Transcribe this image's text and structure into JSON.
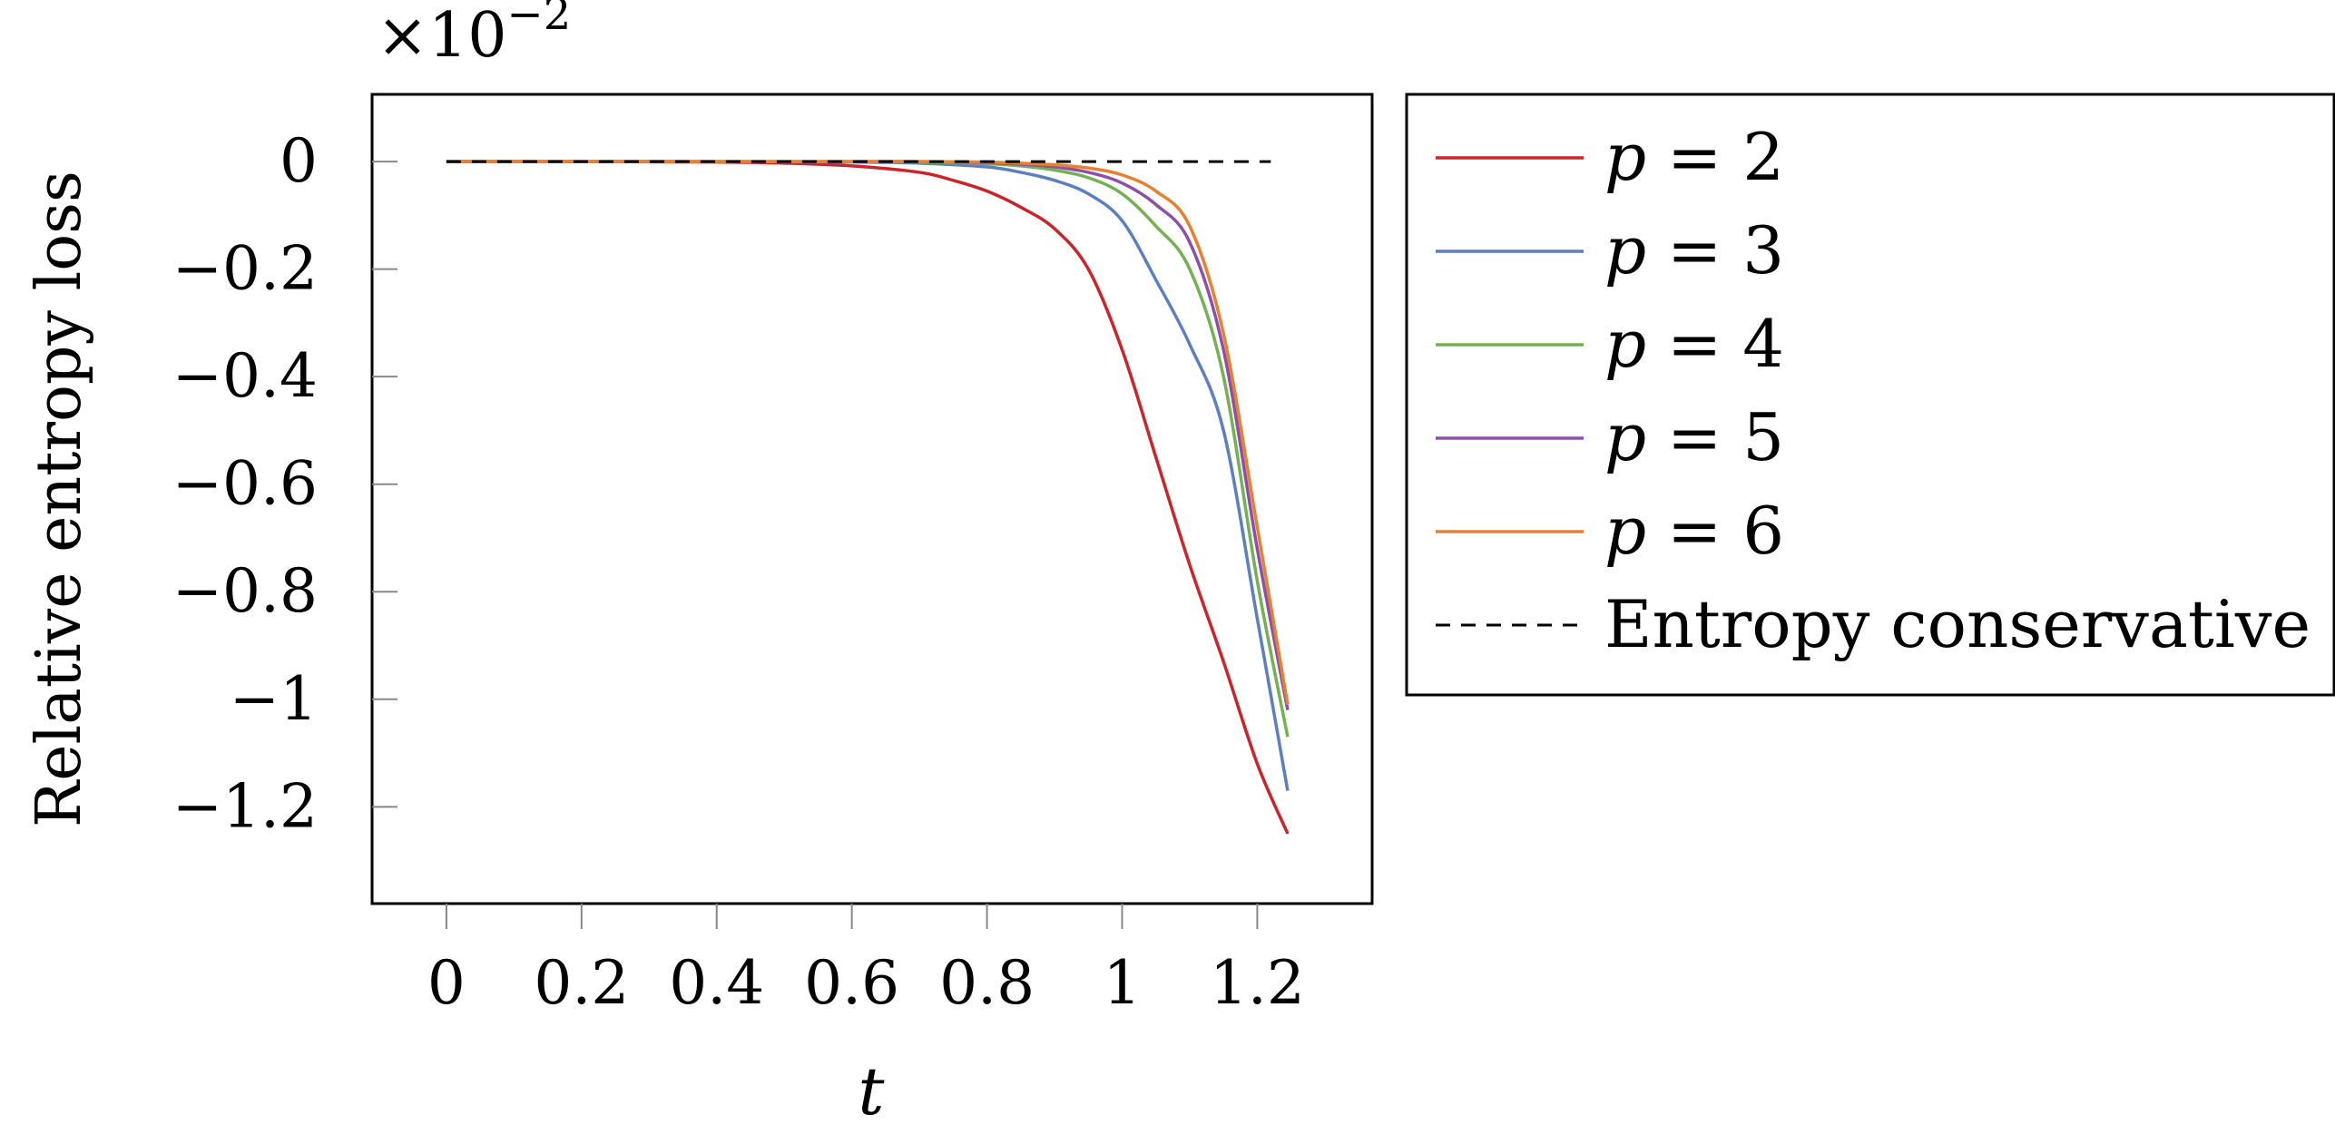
{
  "chart_data": {
    "type": "line",
    "title": "",
    "xlabel": "t",
    "ylabel": "Relative entropy loss",
    "y_scale_label": "×10",
    "y_scale_exponent": "−2",
    "xlim": [
      -0.11,
      1.37
    ],
    "ylim": [
      -1.38,
      0.125
    ],
    "x_ticks": [
      0,
      0.2,
      0.4,
      0.6,
      0.8,
      1,
      1.2
    ],
    "x_tick_labels": [
      "0",
      "0.2",
      "0.4",
      "0.6",
      "0.8",
      "1",
      "1.2"
    ],
    "y_ticks": [
      0,
      -0.2,
      -0.4,
      -0.6,
      -0.8,
      -1,
      -1.2
    ],
    "y_tick_labels": [
      "0",
      "−0.2",
      "−0.4",
      "−0.6",
      "−0.8",
      "−1",
      "−1.2"
    ],
    "grid": false,
    "legend_position": "outside-right",
    "series": [
      {
        "name": "p = 2",
        "legend_var": "p",
        "legend_value": "2",
        "color": "#cc2529",
        "dash": "solid",
        "x": [
          0,
          0.1,
          0.2,
          0.3,
          0.4,
          0.5,
          0.6,
          0.7,
          0.75,
          0.8,
          0.85,
          0.9,
          0.95,
          1.0,
          1.05,
          1.1,
          1.15,
          1.2,
          1.245
        ],
        "y": [
          0,
          0,
          0,
          -0.0005,
          -0.001,
          -0.003,
          -0.008,
          -0.02,
          -0.035,
          -0.055,
          -0.085,
          -0.125,
          -0.2,
          -0.35,
          -0.55,
          -0.75,
          -0.93,
          -1.12,
          -1.25
        ]
      },
      {
        "name": "p = 3",
        "legend_var": "p",
        "legend_value": "3",
        "color": "#5b7fc0",
        "dash": "solid",
        "x": [
          0,
          0.2,
          0.4,
          0.6,
          0.7,
          0.8,
          0.85,
          0.9,
          0.95,
          1.0,
          1.05,
          1.1,
          1.15,
          1.2,
          1.245
        ],
        "y": [
          0,
          0,
          0,
          -0.001,
          -0.003,
          -0.01,
          -0.02,
          -0.035,
          -0.06,
          -0.11,
          -0.22,
          -0.34,
          -0.5,
          -0.85,
          -1.17
        ]
      },
      {
        "name": "p = 4",
        "legend_var": "p",
        "legend_value": "4",
        "color": "#73b153",
        "dash": "solid",
        "x": [
          0,
          0.2,
          0.4,
          0.6,
          0.7,
          0.8,
          0.85,
          0.9,
          0.95,
          1.0,
          1.05,
          1.1,
          1.15,
          1.2,
          1.245
        ],
        "y": [
          0,
          0,
          0,
          0,
          -0.001,
          -0.004,
          -0.008,
          -0.016,
          -0.03,
          -0.06,
          -0.12,
          -0.2,
          -0.4,
          -0.78,
          -1.07
        ]
      },
      {
        "name": "p = 5",
        "legend_var": "p",
        "legend_value": "5",
        "color": "#8d50a8",
        "dash": "solid",
        "x": [
          0,
          0.2,
          0.4,
          0.6,
          0.7,
          0.8,
          0.85,
          0.9,
          0.95,
          1.0,
          1.05,
          1.1,
          1.15,
          1.2,
          1.245
        ],
        "y": [
          0,
          0,
          0,
          0,
          0,
          -0.002,
          -0.005,
          -0.01,
          -0.02,
          -0.04,
          -0.08,
          -0.15,
          -0.35,
          -0.72,
          -1.02
        ]
      },
      {
        "name": "p = 6",
        "legend_var": "p",
        "legend_value": "6",
        "color": "#e8802f",
        "dash": "solid",
        "x": [
          0,
          0.2,
          0.4,
          0.6,
          0.7,
          0.8,
          0.85,
          0.9,
          0.95,
          1.0,
          1.05,
          1.1,
          1.15,
          1.2,
          1.245
        ],
        "y": [
          0,
          0,
          0,
          0,
          0,
          -0.001,
          -0.003,
          -0.006,
          -0.012,
          -0.025,
          -0.055,
          -0.12,
          -0.32,
          -0.68,
          -1.01
        ]
      },
      {
        "name": "Entropy conservative",
        "legend_var": "",
        "legend_value": "",
        "color": "#000000",
        "dash": "dashed",
        "x": [
          0,
          1.22
        ],
        "y": [
          0,
          0
        ]
      }
    ]
  }
}
